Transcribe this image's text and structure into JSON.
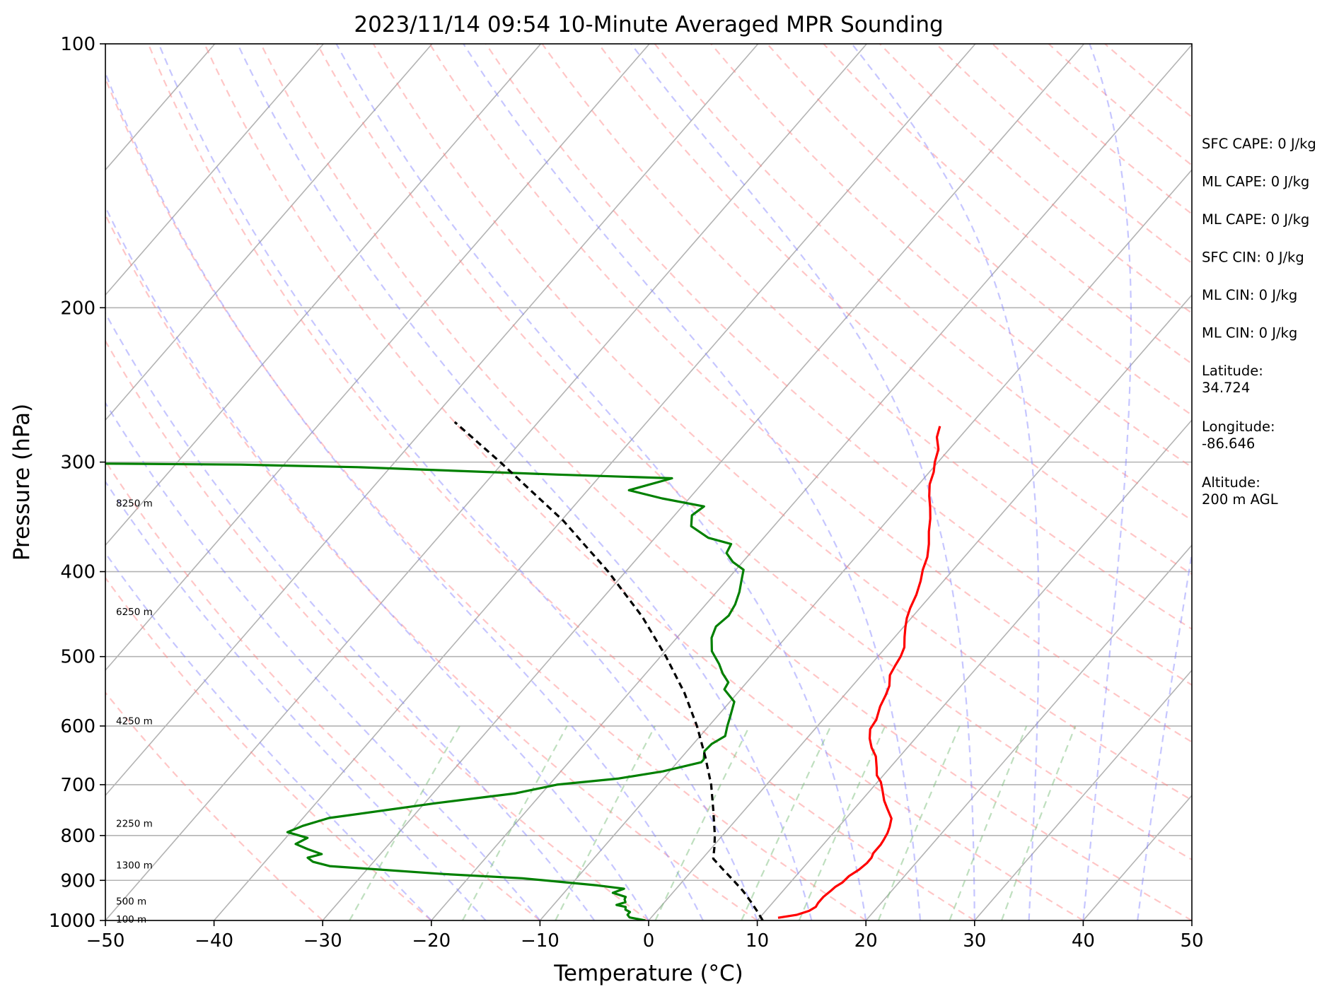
{
  "chart_data": {
    "type": "line",
    "title": "2023/11/14 09:54 10-Minute Averaged MPR Sounding",
    "xlabel": "Temperature (°C)",
    "ylabel": "Pressure (hPa)",
    "xlim": [
      -50,
      50
    ],
    "ylim": [
      1000,
      100
    ],
    "y_scale": "log",
    "skew": "skew-T log-P",
    "grid": true,
    "x_ticks": [
      "−50",
      "−40",
      "−30",
      "−20",
      "−10",
      "0",
      "10",
      "20",
      "30",
      "40",
      "50"
    ],
    "x_tick_values": [
      -50,
      -40,
      -30,
      -20,
      -10,
      0,
      10,
      20,
      30,
      40,
      50
    ],
    "y_ticks": [
      "1000",
      "900",
      "800",
      "700",
      "600",
      "500",
      "400",
      "300",
      "200",
      "100"
    ],
    "y_tick_values": [
      1000,
      900,
      800,
      700,
      600,
      500,
      400,
      300,
      200,
      100
    ],
    "height_labels": [
      {
        "text": "100 m",
        "p": 996
      },
      {
        "text": "500 m",
        "p": 950
      },
      {
        "text": "1300 m",
        "p": 864
      },
      {
        "text": "2250 m",
        "p": 775
      },
      {
        "text": "4250 m",
        "p": 592
      },
      {
        "text": "6250 m",
        "p": 444
      },
      {
        "text": "8250 m",
        "p": 334
      }
    ],
    "series": [
      {
        "role": "temperature",
        "color": "#ff0000",
        "points": [
          [
            993,
            11.7
          ],
          [
            985,
            13.2
          ],
          [
            975,
            14.0
          ],
          [
            965,
            14.3
          ],
          [
            955,
            14.2
          ],
          [
            940,
            14.2
          ],
          [
            925,
            14.4
          ],
          [
            915,
            14.5
          ],
          [
            905,
            14.8
          ],
          [
            890,
            14.9
          ],
          [
            875,
            15.3
          ],
          [
            860,
            15.5
          ],
          [
            848,
            15.5
          ],
          [
            838,
            15.3
          ],
          [
            820,
            15.3
          ],
          [
            810,
            15.2
          ],
          [
            795,
            15.0
          ],
          [
            782,
            14.7
          ],
          [
            765,
            14.2
          ],
          [
            745,
            13.0
          ],
          [
            730,
            12.1
          ],
          [
            712,
            11.2
          ],
          [
            695,
            10.3
          ],
          [
            683,
            9.4
          ],
          [
            670,
            8.8
          ],
          [
            650,
            7.8
          ],
          [
            635,
            6.7
          ],
          [
            620,
            5.8
          ],
          [
            605,
            5.1
          ],
          [
            590,
            4.9
          ],
          [
            570,
            4.2
          ],
          [
            553,
            3.8
          ],
          [
            540,
            3.4
          ],
          [
            525,
            2.6
          ],
          [
            511,
            2.3
          ],
          [
            500,
            2.1
          ],
          [
            488,
            1.7
          ],
          [
            475,
            0.9
          ],
          [
            463,
            0.2
          ],
          [
            452,
            -0.4
          ],
          [
            440,
            -0.9
          ],
          [
            425,
            -1.4
          ],
          [
            410,
            -2.1
          ],
          [
            398,
            -2.8
          ],
          [
            385,
            -3.4
          ],
          [
            372,
            -4.3
          ],
          [
            360,
            -5.3
          ],
          [
            348,
            -6.2
          ],
          [
            338,
            -7.1
          ],
          [
            328,
            -8.1
          ],
          [
            318,
            -9.0
          ],
          [
            308,
            -9.6
          ],
          [
            300,
            -10.3
          ],
          [
            290,
            -11.0
          ],
          [
            281,
            -12.1
          ],
          [
            273,
            -12.7
          ]
        ]
      },
      {
        "role": "dewpoint",
        "color": "#008000",
        "points": [
          [
            1000,
            -0.3
          ],
          [
            992,
            -2.0
          ],
          [
            985,
            -2.4
          ],
          [
            978,
            -2.4
          ],
          [
            972,
            -3.0
          ],
          [
            965,
            -3.2
          ],
          [
            960,
            -4.2
          ],
          [
            953,
            -3.6
          ],
          [
            946,
            -3.9
          ],
          [
            940,
            -4.0
          ],
          [
            930,
            -5.5
          ],
          [
            920,
            -4.8
          ],
          [
            912,
            -7.5
          ],
          [
            895,
            -15.0
          ],
          [
            885,
            -22.7
          ],
          [
            867,
            -33.7
          ],
          [
            857,
            -35.6
          ],
          [
            848,
            -36.4
          ],
          [
            840,
            -35.4
          ],
          [
            829,
            -37.1
          ],
          [
            818,
            -38.6
          ],
          [
            805,
            -38.0
          ],
          [
            793,
            -40.3
          ],
          [
            780,
            -39.4
          ],
          [
            764,
            -37.6
          ],
          [
            735,
            -29.0
          ],
          [
            716,
            -22.4
          ],
          [
            700,
            -19.3
          ],
          [
            689,
            -14.2
          ],
          [
            676,
            -10.6
          ],
          [
            660,
            -7.8
          ],
          [
            655,
            -7.8
          ],
          [
            641,
            -8.4
          ],
          [
            629,
            -8.3
          ],
          [
            616,
            -7.7
          ],
          [
            600,
            -8.3
          ],
          [
            585,
            -8.8
          ],
          [
            563,
            -9.6
          ],
          [
            545,
            -11.5
          ],
          [
            535,
            -11.7
          ],
          [
            523,
            -12.9
          ],
          [
            510,
            -14.0
          ],
          [
            493,
            -15.7
          ],
          [
            476,
            -16.8
          ],
          [
            462,
            -17.3
          ],
          [
            449,
            -17.0
          ],
          [
            436,
            -17.3
          ],
          [
            422,
            -17.9
          ],
          [
            410,
            -18.6
          ],
          [
            398,
            -19.3
          ],
          [
            390,
            -20.9
          ],
          [
            381,
            -22.2
          ],
          [
            372,
            -22.5
          ],
          [
            366,
            -25.1
          ],
          [
            355,
            -27.6
          ],
          [
            345,
            -28.4
          ],
          [
            337,
            -28.0
          ],
          [
            330,
            -32.5
          ],
          [
            323,
            -36.2
          ],
          [
            313,
            -33.2
          ],
          [
            310,
            -44.0
          ],
          [
            304,
            -63.0
          ],
          [
            302,
            -74.0
          ],
          [
            301,
            -90.0
          ]
        ]
      },
      {
        "role": "parcel",
        "color": "#000000",
        "dashed": true,
        "points": [
          [
            1000,
            10.5
          ],
          [
            975,
            9.2
          ],
          [
            950,
            7.8
          ],
          [
            925,
            6.3
          ],
          [
            900,
            4.6
          ],
          [
            875,
            2.8
          ],
          [
            850,
            1.0
          ],
          [
            825,
            0.2
          ],
          [
            800,
            -0.7
          ],
          [
            750,
            -2.8
          ],
          [
            700,
            -5.1
          ],
          [
            650,
            -7.9
          ],
          [
            600,
            -11.1
          ],
          [
            550,
            -14.9
          ],
          [
            500,
            -19.5
          ],
          [
            450,
            -24.9
          ],
          [
            400,
            -31.6
          ],
          [
            350,
            -39.8
          ],
          [
            300,
            -50.3
          ],
          [
            270,
            -57.7
          ]
        ]
      }
    ],
    "background_lines": {
      "isotherms_color": "#b3b3b3",
      "dry_adiabats_color": "#ff8080",
      "moist_adiabats_color": "#8080ff",
      "mixing_ratio_color": "#80c080"
    }
  },
  "info_panel": [
    "SFC CAPE: 0 J/kg",
    "ML CAPE: 0 J/kg",
    "ML CAPE: 0 J/kg",
    "SFC CIN: 0 J/kg",
    "ML CIN: 0 J/kg",
    "ML CIN: 0 J/kg",
    "Latitude:\n34.724",
    "Longitude:\n-86.646",
    "Altitude:\n200 m AGL"
  ]
}
